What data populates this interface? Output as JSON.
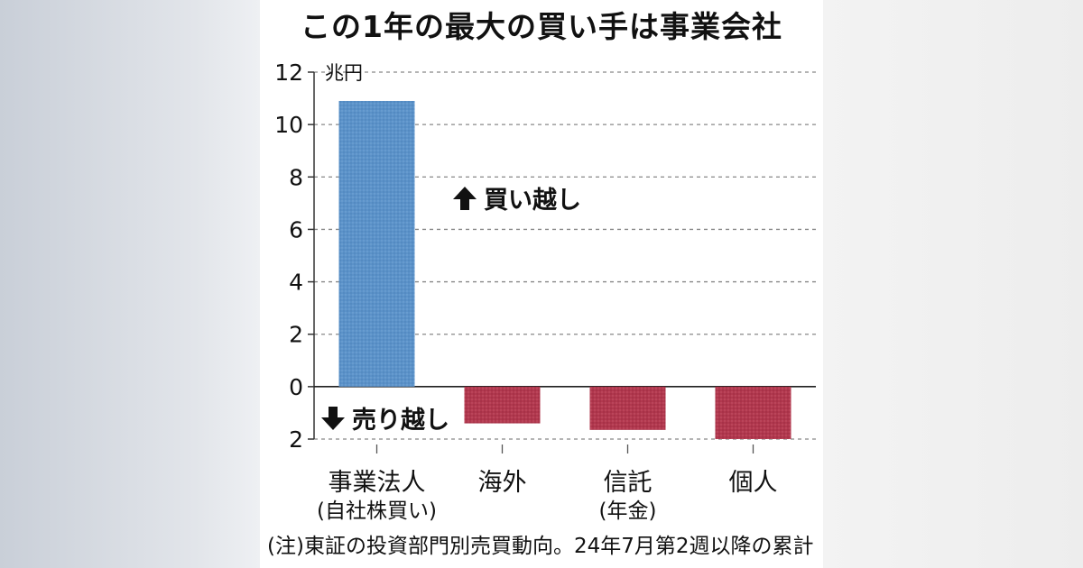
{
  "title": "この1年の最大の買い手は事業会社",
  "footnote": "(注)東証の投資部門別売買動向。24年7月第2週以降の累計",
  "annotations": {
    "buy": "買い越し",
    "sell": "売り越し"
  },
  "colors": {
    "buy_bar": "#5b92c9",
    "sell_bar": "#b1384e",
    "grid": "#888888",
    "text": "#111111"
  },
  "chart_data": {
    "type": "bar",
    "title": "この1年の最大の買い手は事業会社",
    "unit": "兆円",
    "categories": [
      {
        "name": "事業法人",
        "sub": "(自社株買い)"
      },
      {
        "name": "海外",
        "sub": ""
      },
      {
        "name": "信託",
        "sub": "(年金)"
      },
      {
        "name": "個人",
        "sub": ""
      }
    ],
    "values": [
      10.9,
      -1.4,
      -1.65,
      -2.0
    ],
    "ylim": [
      -2,
      12
    ],
    "yticks": [
      12,
      10,
      8,
      6,
      4,
      2,
      0,
      -2
    ],
    "ytick_labels": [
      "12",
      "10",
      "8",
      "6",
      "4",
      "2",
      "0",
      "2"
    ],
    "grid": true
  }
}
